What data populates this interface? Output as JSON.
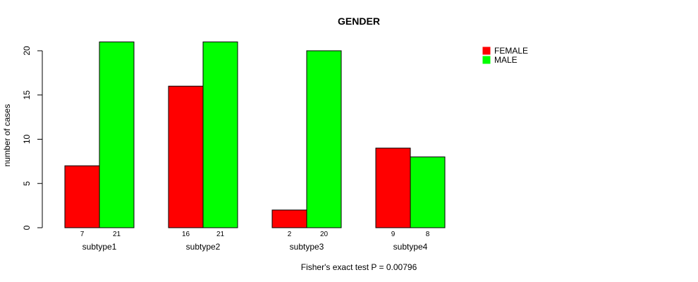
{
  "chart_data": {
    "type": "bar",
    "title": "GENDER",
    "xlabel": "",
    "ylabel": "number of cases",
    "ylim": [
      0,
      21
    ],
    "yticks": [
      0,
      5,
      10,
      15,
      20
    ],
    "categories": [
      "subtype1",
      "subtype2",
      "subtype3",
      "subtype4"
    ],
    "series": [
      {
        "name": "FEMALE",
        "color": "#ff0000",
        "values": [
          7,
          16,
          2,
          9
        ]
      },
      {
        "name": "MALE",
        "color": "#00ff00",
        "values": [
          21,
          21,
          20,
          8
        ]
      }
    ],
    "value_labels": [
      [
        "7",
        "16",
        "2",
        "9"
      ],
      [
        "21",
        "21",
        "20",
        "8"
      ]
    ],
    "legend": {
      "position": "top-right",
      "entries": [
        "FEMALE",
        "MALE"
      ]
    },
    "footnote": "Fisher's exact test P = 0.00796",
    "grid": false
  }
}
